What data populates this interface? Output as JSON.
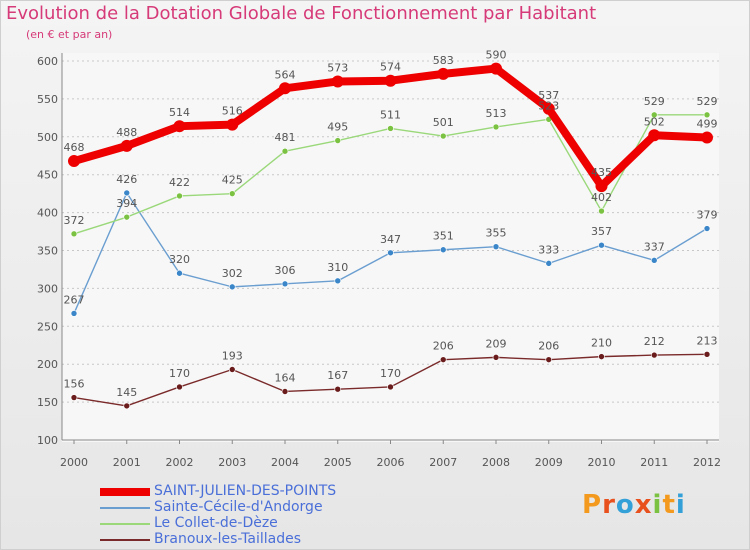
{
  "title": "Evolution de la Dotation Globale de Fonctionnement par Habitant",
  "subtitle": "(en € et par an)",
  "brand": "Proxiti",
  "colors": {
    "title": "#d63a78",
    "axis": "#555555",
    "grid": "#d63a78",
    "legend_text": "#4a6fd8",
    "brand_chars": [
      "#f39a1e",
      "#e8501e",
      "#34a0d8",
      "#e8501e",
      "#7cc242",
      "#f39a1e",
      "#34a0d8"
    ]
  },
  "chart_data": {
    "type": "line",
    "title": "Evolution de la Dotation Globale de Fonctionnement par Habitant",
    "ylabel": "(en € et par an)",
    "xlabel": "",
    "categories": [
      "2000",
      "2001",
      "2002",
      "2003",
      "2004",
      "2005",
      "2006",
      "2007",
      "2008",
      "2009",
      "2010",
      "2011",
      "2012"
    ],
    "ylim": [
      100,
      600
    ],
    "yticks": [
      100,
      150,
      200,
      250,
      300,
      350,
      400,
      450,
      500,
      550,
      600
    ],
    "grid": true,
    "legend_position": "bottom-left",
    "series": [
      {
        "name": "SAINT-JULIEN-DES-POINTS",
        "color": "#ee0000",
        "marker": "#ee0000",
        "emphasis": "thick",
        "values": [
          468,
          488,
          514,
          516,
          564,
          573,
          574,
          583,
          590,
          537,
          435,
          502,
          499
        ]
      },
      {
        "name": "Sainte-Cécile-d'Andorge",
        "color": "#6a9ed0",
        "marker": "#3a86c8",
        "emphasis": "thin",
        "values": [
          267,
          426,
          320,
          302,
          306,
          310,
          347,
          351,
          355,
          333,
          357,
          337,
          379
        ]
      },
      {
        "name": "Le Collet-de-Dèze",
        "color": "#9ad87a",
        "marker": "#7cc242",
        "emphasis": "thin",
        "values": [
          372,
          394,
          422,
          425,
          481,
          495,
          511,
          501,
          513,
          523,
          402,
          529,
          529
        ]
      },
      {
        "name": "Branoux-les-Taillades",
        "color": "#7a2a2a",
        "marker": "#6a1c1c",
        "emphasis": "thin",
        "values": [
          156,
          145,
          170,
          193,
          164,
          167,
          170,
          206,
          209,
          206,
          210,
          212,
          213
        ]
      }
    ]
  }
}
